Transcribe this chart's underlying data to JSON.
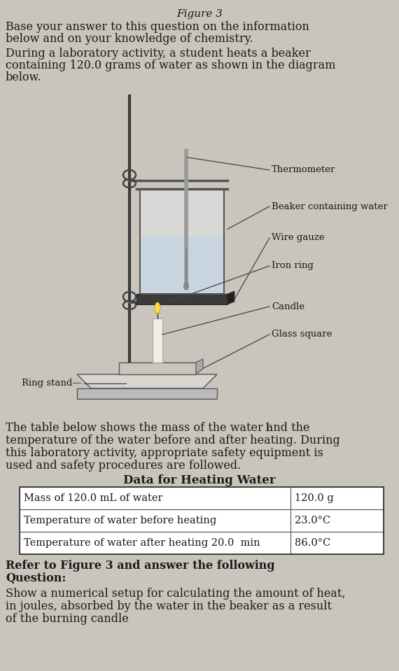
{
  "title": "Figure 3",
  "bg_color": "#c9c5bc",
  "text_color": "#1a1a1a",
  "para1_line1": "Base your answer to this question on the information",
  "para1_line2": "below and on your knowledge of chemistry.",
  "para2_line1": "During a laboratory activity, a student heats a beaker",
  "para2_line2": "containing 120.0 grams of water as shown in the diagram",
  "para2_line3": "below.",
  "para3_line1": "The table below shows the mass of the water and the",
  "para3_line2": "temperature of the water before and after heating. During",
  "para3_line3": "this laboratory activity, appropriate safety equipment is",
  "para3_line4": "used and safety procedures are followed.",
  "cursor_char": "I",
  "table_title": "Data for Heating Water",
  "table_rows": [
    [
      "Mass of 120.0 mL of water",
      "120.0 g"
    ],
    [
      "Temperature of water before heating",
      "23.0°C"
    ],
    [
      "Temperature of water after heating 20.0  min",
      "86.0°C"
    ]
  ],
  "refer_line1": "Refer to Figure 3 and answer the following",
  "refer_line2": "Question:",
  "q_line1": "Show a numerical setup for calculating the amount of heat,",
  "q_line2": "in joules, absorbed by the water in the beaker as a result",
  "q_line3": "of the burning candle",
  "diag_labels": [
    "Thermometer",
    "Beaker containing water",
    "Wire gauze",
    "Iron ring",
    "Candle",
    "Glass square",
    "Ring stand"
  ]
}
